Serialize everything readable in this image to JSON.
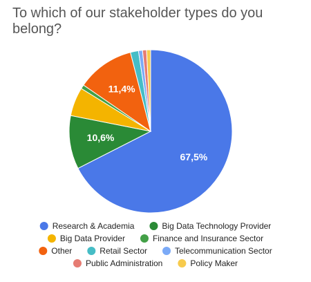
{
  "chart_data": {
    "type": "pie",
    "title": "To which of our stakeholder types do you belong?",
    "categories": [
      "Research & Academia",
      "Big Data Technology Provider",
      "Big Data Provider",
      "Finance and Insurance Sector",
      "Other",
      "Retail Sector",
      "Telecommunication Sector",
      "Public Administration",
      "Policy Maker"
    ],
    "values": [
      67.5,
      10.6,
      5.7,
      0.8,
      11.4,
      1.6,
      0.8,
      0.8,
      0.8
    ],
    "value_labels": [
      "67,5%",
      "10,6%",
      null,
      null,
      "11,4%",
      null,
      null,
      null,
      null
    ],
    "colors": [
      "#4a78e8",
      "#2a8a36",
      "#f4b400",
      "#43a047",
      "#f2620f",
      "#46bdc6",
      "#7baaf7",
      "#e67c73",
      "#f7cb4d"
    ]
  }
}
